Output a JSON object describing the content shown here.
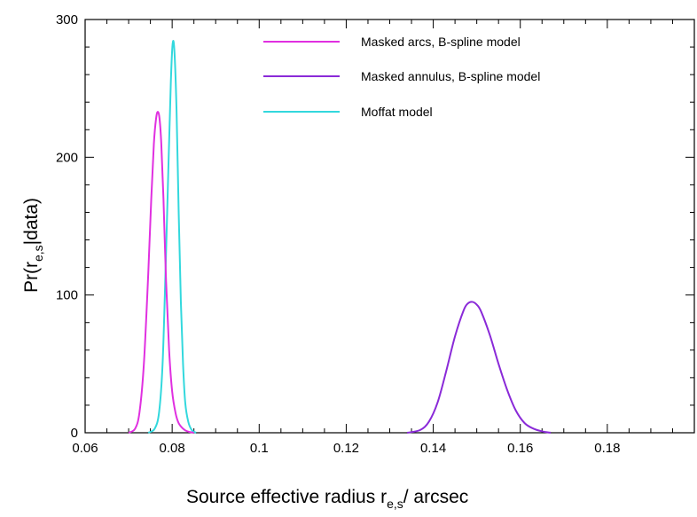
{
  "chart_data": {
    "type": "line",
    "title": "",
    "xlabel": {
      "main": "Source effective radius r",
      "sub": "e,s",
      "suffix": "/ arcsec"
    },
    "ylabel": {
      "main": "Pr(r",
      "sub": "e,s",
      "suffix": "|data)"
    },
    "xlim": [
      0.06,
      0.2
    ],
    "ylim": [
      0,
      300
    ],
    "xticks": [
      0.06,
      0.08,
      0.1,
      0.12,
      0.14,
      0.16,
      0.18
    ],
    "xtick_labels": [
      "0.06",
      "0.08",
      "0.1",
      "0.12",
      "0.14",
      "0.16",
      "0.18"
    ],
    "yticks": [
      0,
      100,
      200,
      300
    ],
    "ytick_labels": [
      "0",
      "100",
      "200",
      "300"
    ],
    "grid": false,
    "legend_position": "top-right",
    "series": [
      {
        "name": "Masked arcs, B-spline model",
        "color": "#e030e0",
        "x": [
          0.07,
          0.0715,
          0.0725,
          0.0735,
          0.0745,
          0.0752,
          0.0758,
          0.0763,
          0.0767,
          0.0771,
          0.0775,
          0.078,
          0.0786,
          0.0793,
          0.08,
          0.0808,
          0.0815,
          0.0825,
          0.0835,
          0.085
        ],
        "y": [
          0,
          3,
          15,
          50,
          115,
          170,
          210,
          228,
          233,
          228,
          210,
          170,
          110,
          60,
          30,
          14,
          7,
          3,
          1,
          0
        ]
      },
      {
        "name": "Masked annulus, B-spline model",
        "color": "#8a2ad8",
        "x": [
          0.134,
          0.137,
          0.139,
          0.141,
          0.143,
          0.145,
          0.147,
          0.148,
          0.149,
          0.15,
          0.151,
          0.153,
          0.155,
          0.157,
          0.159,
          0.161,
          0.163,
          0.165,
          0.167
        ],
        "y": [
          0,
          2,
          8,
          22,
          45,
          70,
          89,
          94,
          95,
          93,
          88,
          71,
          50,
          31,
          16,
          7,
          3,
          1,
          0
        ]
      },
      {
        "name": "Moffat model",
        "color": "#33d8dd",
        "x": [
          0.0745,
          0.076,
          0.077,
          0.0778,
          0.0785,
          0.0792,
          0.0797,
          0.0801,
          0.0805,
          0.081,
          0.0815,
          0.082,
          0.0825,
          0.083,
          0.0837,
          0.0845,
          0.0855
        ],
        "y": [
          0,
          3,
          15,
          50,
          120,
          200,
          255,
          282,
          278,
          235,
          160,
          95,
          50,
          22,
          8,
          2,
          0
        ]
      }
    ]
  }
}
